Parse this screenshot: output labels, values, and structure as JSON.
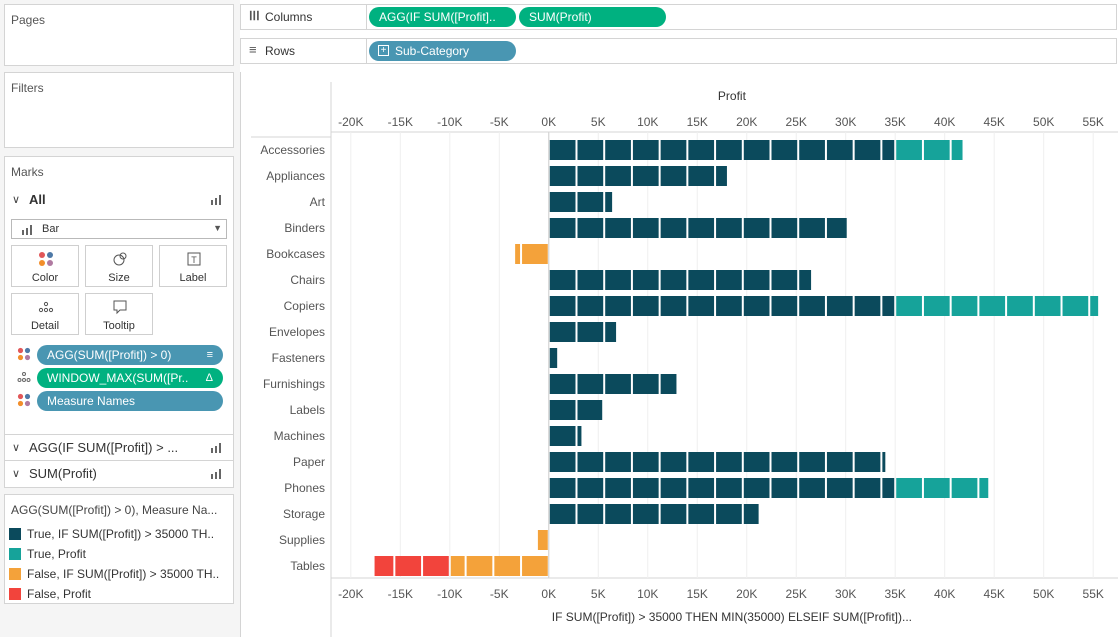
{
  "left_panel": {
    "pages_title": "Pages",
    "filters_title": "Filters",
    "marks_title": "Marks",
    "marks_all_label": "All",
    "mark_type": "Bar",
    "buttons": {
      "color": "Color",
      "size": "Size",
      "label": "Label",
      "detail": "Detail",
      "tooltip": "Tooltip"
    },
    "mark_pills": [
      {
        "text": "AGG(SUM([Profit]) > 0)",
        "badge": "sort-icon"
      },
      {
        "text": "WINDOW_MAX(SUM([Pr..",
        "badge": "delta-icon"
      },
      {
        "text": "Measure Names",
        "badge": ""
      }
    ],
    "shelf_agg": "AGG(IF SUM([Profit]) > ...",
    "shelf_sum": "SUM(Profit)",
    "legend_title": "AGG(SUM([Profit]) > 0), Measure Na...",
    "legend_items": [
      {
        "label": "True, IF SUM([Profit]) > 35000 TH..",
        "color": "#0b4a5c"
      },
      {
        "label": "True, Profit",
        "color": "#16a39a"
      },
      {
        "label": "False, IF SUM([Profit]) > 35000 TH..",
        "color": "#f4a23a"
      },
      {
        "label": "False, Profit",
        "color": "#f2443c"
      }
    ]
  },
  "shelves": {
    "columns_label": "Columns",
    "columns_pills": [
      "AGG(IF SUM([Profit]..",
      "SUM(Profit)"
    ],
    "rows_label": "Rows",
    "rows_pill": "Sub-Category"
  },
  "chart_data": {
    "type": "bar",
    "title": "Profit",
    "xlabel": "IF SUM([Profit]) > 35000 THEN MIN(35000) ELSEIF SUM([Profit])...",
    "xlim": [
      -22000,
      57000
    ],
    "xticks": [
      -20000,
      -15000,
      -10000,
      -5000,
      0,
      5000,
      10000,
      15000,
      20000,
      25000,
      30000,
      35000,
      40000,
      45000,
      50000,
      55000
    ],
    "xtick_labels": [
      "-20K",
      "-15K",
      "-10K",
      "-5K",
      "0K",
      "5K",
      "10K",
      "15K",
      "20K",
      "25K",
      "30K",
      "35K",
      "40K",
      "45K",
      "50K",
      "55K"
    ],
    "unit_block": 2800,
    "categories": [
      "Accessories",
      "Appliances",
      "Art",
      "Binders",
      "Bookcases",
      "Chairs",
      "Copiers",
      "Envelopes",
      "Fasteners",
      "Furnishings",
      "Labels",
      "Machines",
      "Paper",
      "Phones",
      "Storage",
      "Supplies",
      "Tables"
    ],
    "series": [
      {
        "name": "True, IF SUM([Profit]) > 35000 TH..",
        "color": "#0b4a5c",
        "values": [
          35000,
          18100,
          6500,
          30200,
          null,
          26600,
          35000,
          6900,
          950,
          13000,
          5500,
          3400,
          34100,
          35000,
          21300,
          null,
          null
        ]
      },
      {
        "name": "True, Profit",
        "color": "#16a39a",
        "values": [
          41900,
          null,
          null,
          null,
          null,
          null,
          55600,
          null,
          null,
          null,
          null,
          null,
          null,
          44500,
          null,
          null,
          null
        ]
      },
      {
        "name": "False, IF SUM([Profit]) > 35000 TH..",
        "color": "#f4a23a",
        "values": [
          null,
          null,
          null,
          null,
          -3500,
          null,
          null,
          null,
          null,
          null,
          null,
          null,
          null,
          null,
          null,
          -1200,
          -10000
        ]
      },
      {
        "name": "False, Profit",
        "color": "#f2443c",
        "values": [
          null,
          null,
          null,
          null,
          null,
          null,
          null,
          null,
          null,
          null,
          null,
          null,
          null,
          null,
          null,
          null,
          -17700
        ]
      }
    ]
  }
}
